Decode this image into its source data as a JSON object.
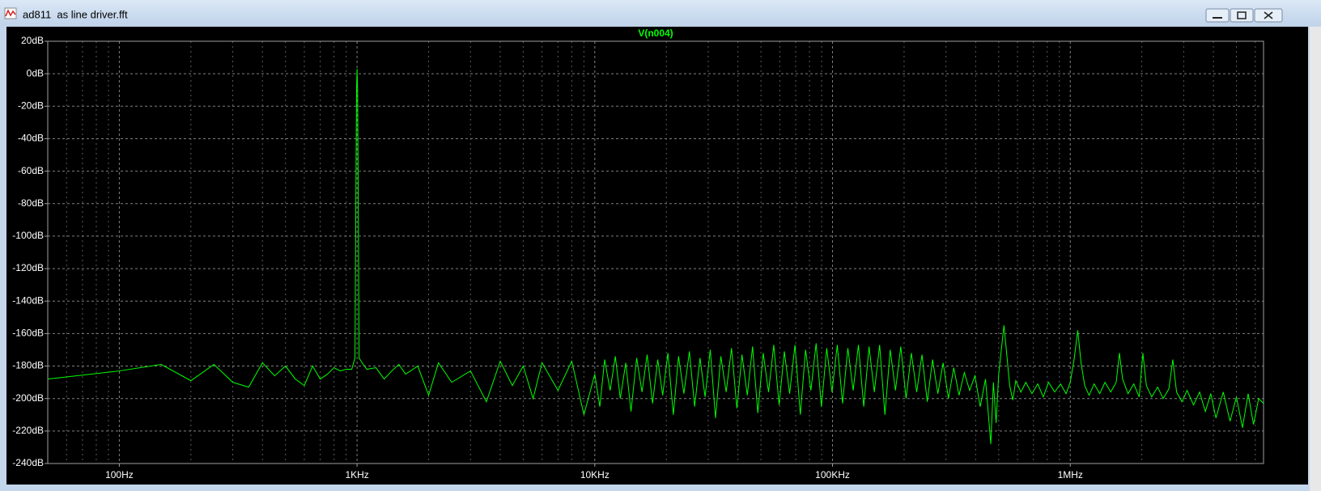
{
  "window": {
    "title": "ad811  as line driver.fft"
  },
  "chart_data": {
    "type": "line",
    "log_x": true,
    "grid": true,
    "xlim": [
      50,
      6500000
    ],
    "ylim": [
      -240,
      20
    ],
    "xticks": [
      {
        "value": 100,
        "label": "100Hz"
      },
      {
        "value": 1000,
        "label": "1KHz"
      },
      {
        "value": 10000,
        "label": "10KHz"
      },
      {
        "value": 100000,
        "label": "100KHz"
      },
      {
        "value": 1000000,
        "label": "1MHz"
      }
    ],
    "xminorticks": [
      60,
      70,
      80,
      90,
      200,
      300,
      400,
      500,
      600,
      700,
      800,
      900,
      2000,
      3000,
      4000,
      5000,
      6000,
      7000,
      8000,
      9000,
      20000,
      30000,
      40000,
      50000,
      60000,
      70000,
      80000,
      90000,
      200000,
      300000,
      400000,
      500000,
      600000,
      700000,
      800000,
      900000,
      2000000,
      3000000,
      4000000,
      5000000,
      6000000
    ],
    "yticks": [
      {
        "value": 20,
        "label": "20dB"
      },
      {
        "value": 0,
        "label": "0dB"
      },
      {
        "value": -20,
        "label": "-20dB"
      },
      {
        "value": -40,
        "label": "-40dB"
      },
      {
        "value": -60,
        "label": "-60dB"
      },
      {
        "value": -80,
        "label": "-80dB"
      },
      {
        "value": -100,
        "label": "-100dB"
      },
      {
        "value": -120,
        "label": "-120dB"
      },
      {
        "value": -140,
        "label": "-140dB"
      },
      {
        "value": -160,
        "label": "-160dB"
      },
      {
        "value": -180,
        "label": "-180dB"
      },
      {
        "value": -200,
        "label": "-200dB"
      },
      {
        "value": -220,
        "label": "-220dB"
      },
      {
        "value": -240,
        "label": "-240dB"
      }
    ],
    "series": [
      {
        "name": "V(n004)",
        "color": "#00ff00",
        "x": [
          50,
          100,
          150,
          200,
          250,
          300,
          350,
          400,
          450,
          500,
          550,
          600,
          650,
          700,
          750,
          800,
          850,
          900,
          950,
          980,
          990,
          995,
          1000,
          1005,
          1010,
          1020,
          1050,
          1100,
          1200,
          1300,
          1400,
          1500,
          1600,
          1800,
          2000,
          2200,
          2500,
          3000,
          3500,
          4000,
          4500,
          5000,
          5500,
          6000,
          7000,
          8000,
          9000,
          10000,
          10500,
          11000,
          11600,
          12200,
          12800,
          13500,
          14200,
          15000,
          15800,
          16600,
          17500,
          18400,
          19300,
          20300,
          21400,
          22500,
          23700,
          25000,
          26300,
          27700,
          29100,
          30600,
          32200,
          33900,
          35700,
          37600,
          39600,
          41600,
          43800,
          46100,
          48500,
          51100,
          53800,
          56600,
          59600,
          62700,
          66000,
          69500,
          73200,
          77000,
          81100,
          85300,
          89800,
          94500,
          99500,
          104700,
          110200,
          116000,
          122100,
          128500,
          135300,
          142400,
          149900,
          157800,
          166100,
          174800,
          184000,
          193700,
          203900,
          214600,
          225900,
          237800,
          250300,
          263500,
          277300,
          291900,
          307300,
          323500,
          340500,
          358400,
          377300,
          397100,
          418000,
          440000,
          463100,
          475000,
          487500,
          500000,
          513000,
          526000,
          540000,
          556000,
          573000,
          590000,
          620000,
          650000,
          690000,
          730000,
          770000,
          810000,
          860000,
          910000,
          960000,
          1000000,
          1040000,
          1075000,
          1110000,
          1150000,
          1200000,
          1260000,
          1330000,
          1400000,
          1480000,
          1560000,
          1610000,
          1660000,
          1750000,
          1850000,
          1950000,
          2020000,
          2090000,
          2200000,
          2330000,
          2460000,
          2600000,
          2700000,
          2800000,
          2950000,
          3100000,
          3300000,
          3500000,
          3700000,
          3900000,
          4100000,
          4400000,
          4700000,
          5000000,
          5300000,
          5600000,
          5900000,
          6200000,
          6500000
        ],
        "values": [
          -188,
          -183,
          -179,
          -189,
          -179,
          -190,
          -193,
          -178,
          -186,
          -180,
          -188,
          -192,
          -180,
          -188,
          -185,
          -181,
          -183,
          -182,
          -182,
          -175,
          -60,
          -10,
          3,
          -10,
          -60,
          -175,
          -178,
          -182,
          -181,
          -188,
          -183,
          -179,
          -185,
          -180,
          -198,
          -178,
          -190,
          -183,
          -202,
          -177,
          -192,
          -180,
          -200,
          -178,
          -195,
          -177,
          -210,
          -185,
          -205,
          -176,
          -195,
          -174,
          -200,
          -178,
          -208,
          -175,
          -196,
          -173,
          -203,
          -176,
          -198,
          -172,
          -210,
          -174,
          -197,
          -171,
          -205,
          -175,
          -199,
          -170,
          -212,
          -174,
          -196,
          -169,
          -206,
          -173,
          -198,
          -168,
          -209,
          -172,
          -196,
          -167,
          -204,
          -171,
          -197,
          -167,
          -210,
          -170,
          -195,
          -166,
          -205,
          -169,
          -196,
          -167,
          -203,
          -169,
          -195,
          -167,
          -205,
          -168,
          -196,
          -167,
          -210,
          -170,
          -195,
          -168,
          -200,
          -172,
          -196,
          -173,
          -202,
          -176,
          -197,
          -178,
          -200,
          -181,
          -198,
          -184,
          -195,
          -186,
          -205,
          -188,
          -228,
          -190,
          -215,
          -185,
          -170,
          -155,
          -172,
          -192,
          -201,
          -189,
          -196,
          -190,
          -197,
          -191,
          -199,
          -190,
          -196,
          -191,
          -197,
          -190,
          -175,
          -158,
          -178,
          -192,
          -198,
          -191,
          -197,
          -190,
          -196,
          -190,
          -172,
          -188,
          -197,
          -191,
          -199,
          -172,
          -192,
          -199,
          -193,
          -200,
          -194,
          -176,
          -196,
          -202,
          -195,
          -204,
          -196,
          -208,
          -197,
          -212,
          -196,
          -214,
          -199,
          -218,
          -197,
          -216,
          -200,
          -203
        ]
      }
    ]
  }
}
